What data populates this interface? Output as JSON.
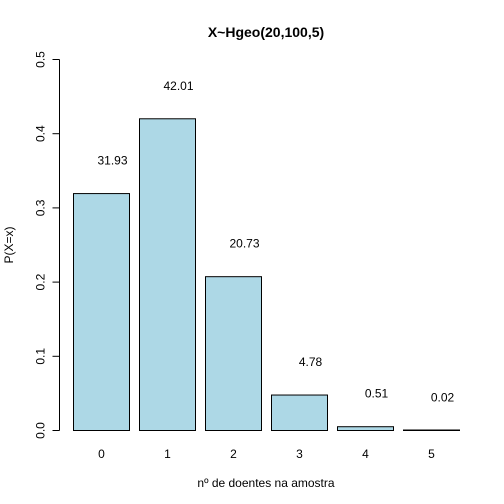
{
  "chart_data": {
    "type": "bar",
    "title": "X~Hgeo(20,100,5)",
    "xlabel": "nº de doentes na amostra",
    "ylabel": "P(X=x)",
    "categories": [
      "0",
      "1",
      "2",
      "3",
      "4",
      "5"
    ],
    "values": [
      0.3193,
      0.4201,
      0.2073,
      0.0478,
      0.0051,
      0.0002
    ],
    "data_labels": [
      "31.93",
      "42.01",
      "20.73",
      "4.78",
      "0.51",
      "0.02"
    ],
    "ylim": [
      0,
      0.5
    ],
    "yticks": [
      0,
      0.1,
      0.2,
      0.3,
      0.4,
      0.5
    ],
    "ytick_labels": [
      "0.0",
      "0.1",
      "0.2",
      "0.3",
      "0.4",
      "0.5"
    ],
    "bar_color": "#add8e6",
    "grid": false,
    "legend": "none"
  }
}
